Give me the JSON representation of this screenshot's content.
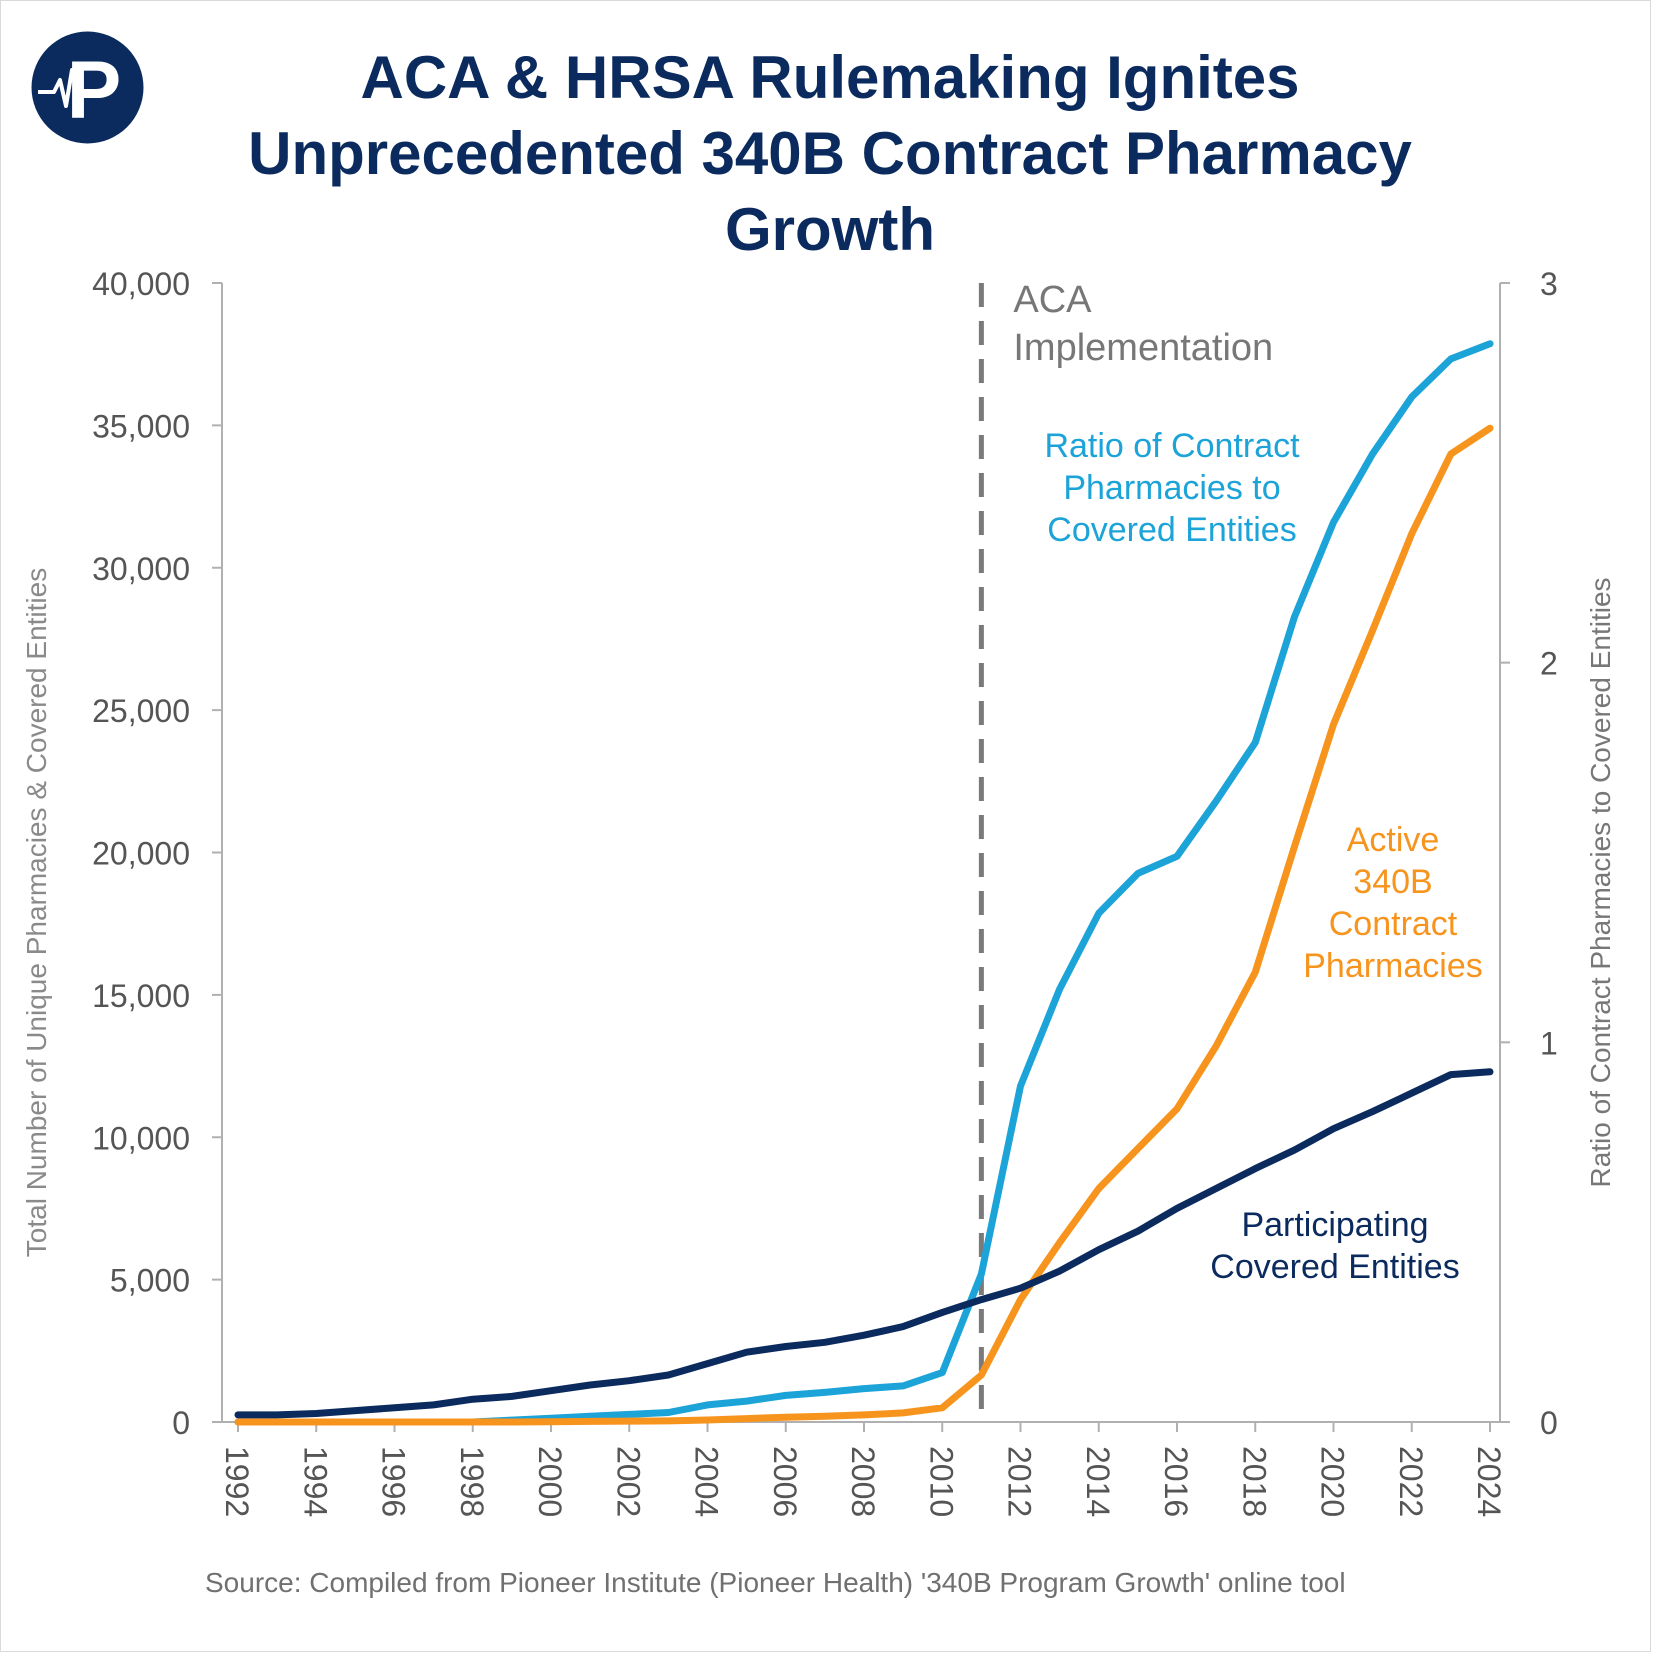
{
  "title": "ACA & HRSA Rulemaking Ignites Unprecedented 340B Contract Pharmacy Growth",
  "source": "Source: Compiled from Pioneer Institute (Pioneer Health) '340B Program Growth' online tool",
  "logo": {
    "icon": "pioneer-health-logo",
    "letter": "P"
  },
  "colors": {
    "ratio": "#1ca3d8",
    "pharmacies": "#f7941d",
    "entities": "#0b2a5e",
    "axis": "#b0b0b0",
    "tick_text": "#555555",
    "annotation": "#777777",
    "title": "#0b2a5e"
  },
  "chart_data": {
    "type": "line",
    "ylabel": "Total Number of Unique  Pharmacies & Covered Entities",
    "y2label": "Ratio of Contract Pharmacies to Covered Entities",
    "xlim": [
      1992,
      2024
    ],
    "ylim": [
      0,
      40000
    ],
    "y2lim": [
      0,
      3
    ],
    "x_ticks": [
      "1992",
      "1994",
      "1996",
      "1998",
      "2000",
      "2002",
      "2004",
      "2006",
      "2008",
      "2010",
      "2012",
      "2014",
      "2016",
      "2018",
      "2020",
      "2022",
      "2024"
    ],
    "y_ticks": [
      "0",
      "5,000",
      "10,000",
      "15,000",
      "20,000",
      "25,000",
      "30,000",
      "35,000",
      "40,000"
    ],
    "y2_ticks": [
      "0",
      "1",
      "2",
      "3"
    ],
    "grid": false,
    "annotation": {
      "x": 2011.0,
      "lines": [
        "ACA",
        "Implementation"
      ]
    },
    "series": [
      {
        "name": "Participating Covered Entities",
        "label_lines": [
          "Participating",
          "Covered Entities"
        ],
        "axis": "left",
        "x": [
          1992,
          1993,
          1994,
          1995,
          1996,
          1997,
          1998,
          1999,
          2000,
          2001,
          2002,
          2003,
          2004,
          2005,
          2006,
          2007,
          2008,
          2009,
          2010,
          2011,
          2012,
          2013,
          2014,
          2015,
          2016,
          2017,
          2018,
          2019,
          2020,
          2021,
          2022,
          2023,
          2024
        ],
        "values": [
          250,
          250,
          300,
          400,
          500,
          600,
          800,
          900,
          1100,
          1300,
          1450,
          1650,
          2050,
          2450,
          2650,
          2800,
          3050,
          3350,
          3850,
          4300,
          4700,
          5300,
          6050,
          6700,
          7500,
          8200,
          8900,
          9550,
          10300,
          10900,
          11550,
          12200,
          12300
        ]
      },
      {
        "name": "Active 340B Contract Pharmacies",
        "label_lines": [
          "Active",
          "340B",
          "Contract",
          "Pharmacies"
        ],
        "axis": "left",
        "x": [
          1992,
          1993,
          1994,
          1995,
          1996,
          1997,
          1998,
          1999,
          2000,
          2001,
          2002,
          2003,
          2004,
          2005,
          2006,
          2007,
          2008,
          2009,
          2010,
          2011,
          2012,
          2013,
          2014,
          2015,
          2016,
          2017,
          2018,
          2019,
          2020,
          2021,
          2022,
          2023,
          2024
        ],
        "values": [
          0,
          0,
          0,
          0,
          0,
          0,
          0,
          0,
          10,
          20,
          30,
          40,
          70,
          120,
          170,
          200,
          250,
          320,
          500,
          1650,
          4300,
          6300,
          8200,
          9600,
          11000,
          13200,
          15800,
          20200,
          24500,
          27800,
          31200,
          34000,
          34900
        ]
      },
      {
        "name": "Ratio of Contract Pharmacies to Covered Entities",
        "label_lines": [
          "Ratio of Contract",
          "Pharmacies to",
          "Covered Entities"
        ],
        "axis": "right",
        "x": [
          1992,
          1993,
          1994,
          1995,
          1996,
          1997,
          1998,
          1999,
          2000,
          2001,
          2002,
          2003,
          2004,
          2005,
          2006,
          2007,
          2008,
          2009,
          2010,
          2011,
          2012,
          2013,
          2014,
          2015,
          2016,
          2017,
          2018,
          2019,
          2020,
          2021,
          2022,
          2023,
          2024
        ],
        "values": [
          0.0,
          0.0,
          0.0,
          0.0,
          0.0,
          0.0,
          0.0,
          0.005,
          0.01,
          0.015,
          0.02,
          0.025,
          0.045,
          0.055,
          0.07,
          0.078,
          0.088,
          0.095,
          0.13,
          0.39,
          0.885,
          1.14,
          1.34,
          1.445,
          1.49,
          1.635,
          1.79,
          2.12,
          2.37,
          2.55,
          2.7,
          2.8,
          2.84
        ]
      }
    ]
  }
}
